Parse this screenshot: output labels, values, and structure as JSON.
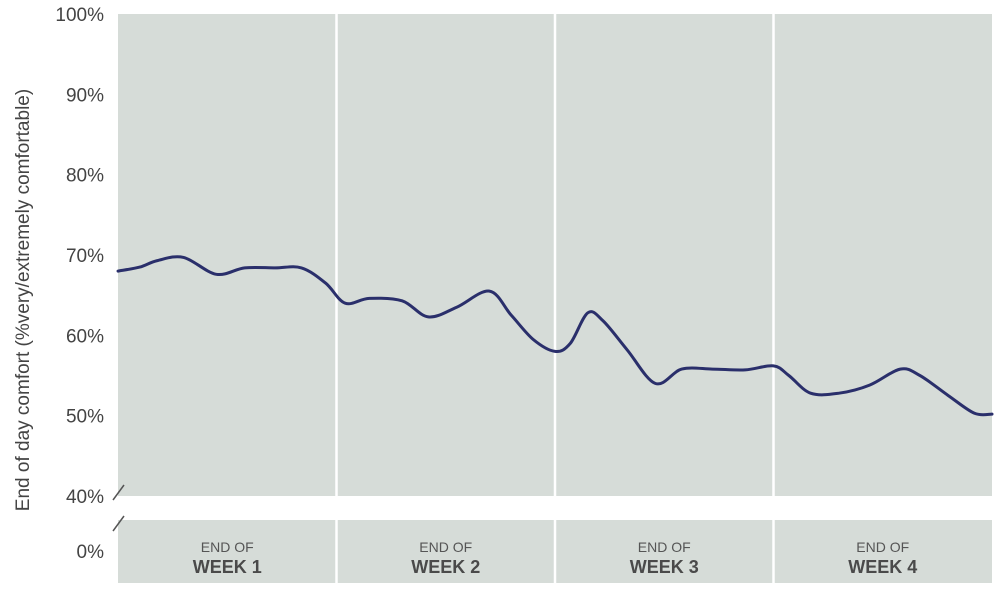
{
  "chart_data": {
    "type": "line",
    "ylabel": "End of day comfort (%very/extremely comfortable)",
    "y_ticks": [
      "100%",
      "90%",
      "80%",
      "70%",
      "60%",
      "50%",
      "40%"
    ],
    "y_tick_values": [
      100,
      90,
      80,
      70,
      60,
      50,
      40
    ],
    "y_baseline_tick": "0%",
    "ylim": [
      40,
      100
    ],
    "axis_break": true,
    "xlim": [
      0,
      4
    ],
    "weeks": [
      {
        "top": "END OF",
        "bottom": "WEEK 1"
      },
      {
        "top": "END OF",
        "bottom": "WEEK 2"
      },
      {
        "top": "END OF",
        "bottom": "WEEK 3"
      },
      {
        "top": "END OF",
        "bottom": "WEEK 4"
      }
    ],
    "series": [
      {
        "points": [
          [
            0.0,
            68.0
          ],
          [
            0.1,
            68.5
          ],
          [
            0.18,
            69.3
          ],
          [
            0.3,
            69.7
          ],
          [
            0.45,
            67.6
          ],
          [
            0.58,
            68.4
          ],
          [
            0.72,
            68.4
          ],
          [
            0.84,
            68.4
          ],
          [
            0.95,
            66.5
          ],
          [
            1.04,
            64.0
          ],
          [
            1.15,
            64.6
          ],
          [
            1.3,
            64.3
          ],
          [
            1.42,
            62.3
          ],
          [
            1.55,
            63.5
          ],
          [
            1.7,
            65.5
          ],
          [
            1.8,
            62.5
          ],
          [
            1.9,
            59.5
          ],
          [
            2.0,
            58.0
          ],
          [
            2.07,
            59.0
          ],
          [
            2.15,
            62.8
          ],
          [
            2.22,
            61.8
          ],
          [
            2.33,
            58.2
          ],
          [
            2.46,
            54.0
          ],
          [
            2.58,
            55.8
          ],
          [
            2.72,
            55.8
          ],
          [
            2.87,
            55.7
          ],
          [
            3.0,
            56.2
          ],
          [
            3.07,
            55.0
          ],
          [
            3.17,
            52.8
          ],
          [
            3.3,
            52.8
          ],
          [
            3.44,
            53.8
          ],
          [
            3.58,
            55.8
          ],
          [
            3.67,
            55.0
          ],
          [
            3.8,
            52.5
          ],
          [
            3.92,
            50.3
          ],
          [
            4.0,
            50.2
          ]
        ]
      }
    ],
    "colors": {
      "plot_bg": "#d6dcd8",
      "grid_divider": "#ffffff",
      "line": "#2a2f6b"
    }
  }
}
